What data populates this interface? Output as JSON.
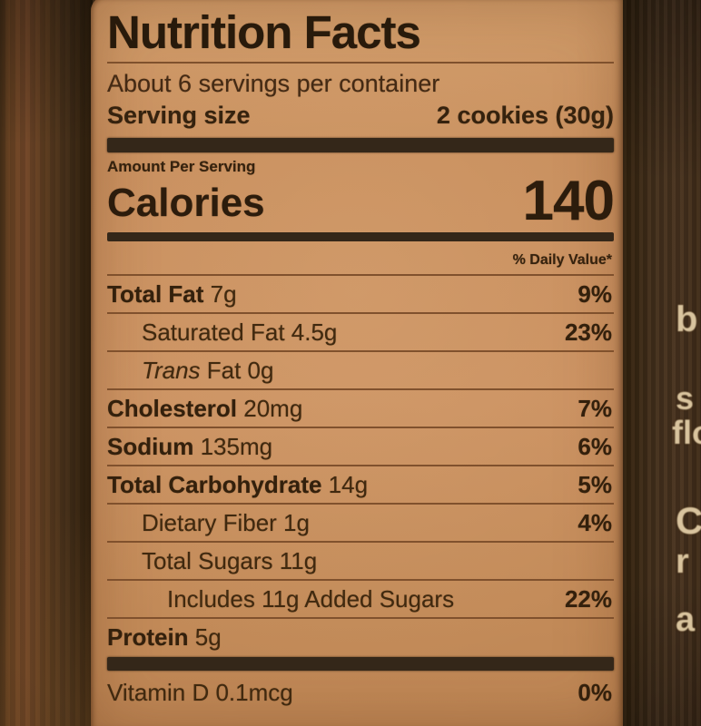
{
  "label": {
    "title": "Nutrition Facts",
    "servings_per_container": "About 6 servings per container",
    "serving_size_label": "Serving size",
    "serving_size_value": "2 cookies (30g)",
    "amount_per_serving": "Amount Per Serving",
    "calories_label": "Calories",
    "calories_value": "140",
    "daily_value_header": "% Daily Value*",
    "rows": [
      {
        "em": "",
        "name": "Total Fat",
        "amount": "7g",
        "dv": "9%",
        "bold": true,
        "indent": 0
      },
      {
        "em": "",
        "name": "Saturated Fat",
        "amount": "4.5g",
        "dv": "23%",
        "bold": false,
        "indent": 1
      },
      {
        "em": "Trans",
        "name": " Fat",
        "amount": "0g",
        "dv": "",
        "bold": false,
        "indent": 1
      },
      {
        "em": "",
        "name": "Cholesterol",
        "amount": "20mg",
        "dv": "7%",
        "bold": true,
        "indent": 0
      },
      {
        "em": "",
        "name": "Sodium",
        "amount": "135mg",
        "dv": "6%",
        "bold": true,
        "indent": 0
      },
      {
        "em": "",
        "name": "Total Carbohydrate",
        "amount": "14g",
        "dv": "5%",
        "bold": true,
        "indent": 0
      },
      {
        "em": "",
        "name": "Dietary Fiber",
        "amount": "1g",
        "dv": "4%",
        "bold": false,
        "indent": 1
      },
      {
        "em": "",
        "name": "Total Sugars",
        "amount": "11g",
        "dv": "",
        "bold": false,
        "indent": 1
      },
      {
        "em": "",
        "name": "Includes 11g Added Sugars",
        "amount": "",
        "dv": "22%",
        "bold": false,
        "indent": 2
      },
      {
        "em": "",
        "name": "Protein",
        "amount": "5g",
        "dv": "",
        "bold": true,
        "indent": 0,
        "thick_after": true
      },
      {
        "em": "",
        "name": "Vitamin D",
        "amount": "0.1mcg",
        "dv": "0%",
        "bold": false,
        "indent": 0,
        "no_sep": true
      }
    ]
  },
  "background": {
    "right_text_fragments": [
      "b",
      "s",
      "flo",
      "C",
      "r",
      "a"
    ]
  },
  "colors": {
    "label_paper": "#c78d5c",
    "label_ink": "#33200c",
    "hairline": "#80512d",
    "thick_bar": "#342719",
    "wood_dark": "#35240f",
    "fragment_text": "#d9c49e"
  }
}
